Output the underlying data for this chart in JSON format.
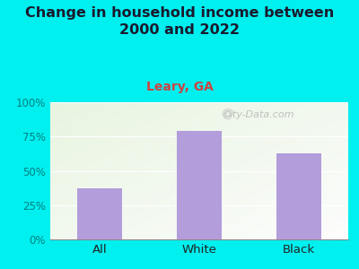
{
  "title": "Change in household income between\n2000 and 2022",
  "subtitle": "Leary, GA",
  "categories": [
    "All",
    "White",
    "Black"
  ],
  "values": [
    37,
    79,
    63
  ],
  "bar_color": "#b39ddb",
  "background_color": "#00efef",
  "title_color": "#1a1a2e",
  "title_fontsize": 11.5,
  "subtitle_fontsize": 10,
  "subtitle_color": "#cc4444",
  "tick_color": "#008080",
  "xlabel_color": "#222222",
  "ylim": [
    0,
    100
  ],
  "yticks": [
    0,
    25,
    50,
    75,
    100
  ],
  "ytick_labels": [
    "0%",
    "25%",
    "50%",
    "75%",
    "100%"
  ],
  "watermark": "City-Data.com"
}
